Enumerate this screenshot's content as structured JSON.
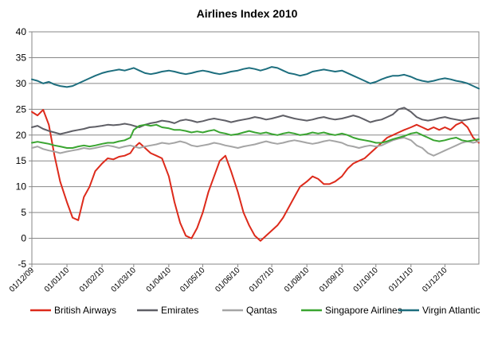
{
  "chart_data": {
    "type": "line",
    "title": "Airlines Index 2010",
    "xlabel": "",
    "ylabel": "",
    "ylim": [
      -5,
      40
    ],
    "yticks": [
      -5,
      0,
      5,
      10,
      15,
      20,
      25,
      30,
      35,
      40
    ],
    "x_tick_labels": [
      "01/12/09",
      "01/01/10",
      "01/02/10",
      "01/03/10",
      "01/04/10",
      "01/05/10",
      "01/06/10",
      "01/07/10",
      "01/08/10",
      "01/09/10",
      "01/10/10",
      "01/11/10",
      "01/12/10"
    ],
    "x_period": [
      "2009-12-01",
      "2010-12-31"
    ],
    "grid": "horizontal",
    "legend_position": "bottom",
    "x": [
      "2009-12-01",
      "2009-12-06",
      "2009-12-11",
      "2009-12-16",
      "2009-12-21",
      "2009-12-26",
      "2010-01-01",
      "2010-01-06",
      "2010-01-11",
      "2010-01-16",
      "2010-01-21",
      "2010-01-26",
      "2010-02-01",
      "2010-02-06",
      "2010-02-11",
      "2010-02-16",
      "2010-02-21",
      "2010-02-26",
      "2010-03-01",
      "2010-03-06",
      "2010-03-11",
      "2010-03-16",
      "2010-03-21",
      "2010-03-26",
      "2010-04-01",
      "2010-04-06",
      "2010-04-11",
      "2010-04-16",
      "2010-04-21",
      "2010-04-26",
      "2010-05-01",
      "2010-05-06",
      "2010-05-11",
      "2010-05-16",
      "2010-05-21",
      "2010-05-26",
      "2010-06-01",
      "2010-06-06",
      "2010-06-11",
      "2010-06-16",
      "2010-06-21",
      "2010-06-26",
      "2010-07-01",
      "2010-07-06",
      "2010-07-11",
      "2010-07-16",
      "2010-07-21",
      "2010-07-26",
      "2010-08-01",
      "2010-08-06",
      "2010-08-11",
      "2010-08-16",
      "2010-08-21",
      "2010-08-26",
      "2010-09-01",
      "2010-09-06",
      "2010-09-11",
      "2010-09-16",
      "2010-09-21",
      "2010-09-26",
      "2010-10-01",
      "2010-10-06",
      "2010-10-11",
      "2010-10-16",
      "2010-10-21",
      "2010-10-26",
      "2010-11-01",
      "2010-11-06",
      "2010-11-11",
      "2010-11-16",
      "2010-11-21",
      "2010-11-26",
      "2010-12-01",
      "2010-12-06",
      "2010-12-11",
      "2010-12-16",
      "2010-12-21",
      "2010-12-26",
      "2010-12-31"
    ],
    "series": [
      {
        "name": "British Airways",
        "color": "#dd2a1b",
        "values": [
          24.5,
          23.8,
          24.9,
          22.0,
          16.0,
          11.0,
          7.0,
          4.0,
          3.5,
          8.0,
          10.0,
          13.0,
          14.5,
          15.5,
          15.3,
          15.8,
          16.0,
          16.5,
          17.5,
          18.5,
          17.5,
          16.5,
          16.0,
          15.5,
          12.0,
          7.0,
          3.0,
          0.5,
          0.0,
          2.0,
          5.0,
          9.0,
          12.0,
          15.0,
          16.0,
          13.0,
          9.0,
          5.0,
          2.5,
          0.5,
          -0.5,
          0.5,
          1.5,
          2.5,
          4.0,
          6.0,
          8.0,
          10.0,
          11.0,
          12.0,
          11.5,
          10.5,
          10.5,
          11.0,
          12.0,
          13.5,
          14.5,
          15.0,
          15.5,
          16.5,
          17.5,
          18.5,
          19.5,
          20.0,
          20.5,
          21.0,
          21.5,
          22.0,
          21.5,
          21.0,
          21.5,
          21.0,
          21.5,
          21.0,
          22.0,
          22.5,
          21.5,
          19.5,
          18.5
        ]
      },
      {
        "name": "Emirates",
        "color": "#5f5f66",
        "values": [
          21.5,
          21.8,
          21.2,
          20.8,
          20.5,
          20.2,
          20.5,
          20.8,
          21.0,
          21.2,
          21.5,
          21.6,
          21.8,
          22.0,
          21.9,
          22.0,
          22.2,
          22.0,
          21.8,
          21.5,
          22.0,
          22.3,
          22.5,
          22.8,
          22.6,
          22.3,
          22.8,
          23.0,
          22.8,
          22.5,
          22.7,
          23.0,
          23.2,
          23.0,
          22.8,
          22.5,
          22.8,
          23.0,
          23.2,
          23.5,
          23.3,
          23.0,
          23.2,
          23.5,
          23.8,
          23.5,
          23.2,
          23.0,
          22.8,
          23.0,
          23.3,
          23.5,
          23.2,
          23.0,
          23.2,
          23.5,
          23.8,
          23.5,
          23.0,
          22.5,
          22.8,
          23.0,
          23.5,
          24.0,
          25.0,
          25.3,
          24.5,
          23.5,
          23.0,
          22.8,
          23.0,
          23.3,
          23.5,
          23.2,
          23.0,
          22.8,
          23.0,
          23.2,
          23.3
        ]
      },
      {
        "name": "Qantas",
        "color": "#a5a5a5",
        "values": [
          17.5,
          17.8,
          17.3,
          17.0,
          16.8,
          16.5,
          16.8,
          17.0,
          17.2,
          17.5,
          17.3,
          17.5,
          17.8,
          18.0,
          17.8,
          17.5,
          17.8,
          18.0,
          17.8,
          17.5,
          17.8,
          18.0,
          18.2,
          18.5,
          18.3,
          18.5,
          18.8,
          18.5,
          18.0,
          17.8,
          18.0,
          18.2,
          18.5,
          18.3,
          18.0,
          17.8,
          17.5,
          17.8,
          18.0,
          18.2,
          18.5,
          18.8,
          18.5,
          18.3,
          18.5,
          18.8,
          19.0,
          18.8,
          18.5,
          18.3,
          18.5,
          18.8,
          19.0,
          18.8,
          18.5,
          18.0,
          17.8,
          17.5,
          17.8,
          18.0,
          17.8,
          18.0,
          18.5,
          19.0,
          19.3,
          19.5,
          19.0,
          18.0,
          17.5,
          16.5,
          16.0,
          16.5,
          17.0,
          17.5,
          18.0,
          18.5,
          18.8,
          18.5,
          18.8
        ]
      },
      {
        "name": "Singapore Airlines",
        "color": "#3aa531",
        "values": [
          18.5,
          18.7,
          18.5,
          18.3,
          18.0,
          17.8,
          17.5,
          17.5,
          17.8,
          18.0,
          17.8,
          18.0,
          18.3,
          18.5,
          18.5,
          18.8,
          19.0,
          19.5,
          21.0,
          21.8,
          22.0,
          21.8,
          22.0,
          21.5,
          21.3,
          21.0,
          21.0,
          20.8,
          20.5,
          20.7,
          20.5,
          20.8,
          21.0,
          20.5,
          20.3,
          20.0,
          20.2,
          20.5,
          20.8,
          20.5,
          20.3,
          20.5,
          20.2,
          20.0,
          20.3,
          20.5,
          20.3,
          20.0,
          20.2,
          20.5,
          20.3,
          20.5,
          20.2,
          20.0,
          20.3,
          20.0,
          19.5,
          19.2,
          19.0,
          18.8,
          18.5,
          18.5,
          18.8,
          19.2,
          19.5,
          19.8,
          20.3,
          20.5,
          20.0,
          19.5,
          19.0,
          18.8,
          19.0,
          19.3,
          19.5,
          19.0,
          18.8,
          19.0,
          19.2
        ]
      },
      {
        "name": "Virgin Atlantic",
        "color": "#1d6e7e",
        "values": [
          30.8,
          30.5,
          30.0,
          30.3,
          29.8,
          29.5,
          29.3,
          29.5,
          30.0,
          30.5,
          31.0,
          31.5,
          32.0,
          32.3,
          32.5,
          32.7,
          32.5,
          32.8,
          33.0,
          32.5,
          32.0,
          31.8,
          32.0,
          32.3,
          32.5,
          32.3,
          32.0,
          31.8,
          32.0,
          32.3,
          32.5,
          32.3,
          32.0,
          31.8,
          32.0,
          32.3,
          32.5,
          32.8,
          33.0,
          32.8,
          32.5,
          32.8,
          33.2,
          33.0,
          32.5,
          32.0,
          31.8,
          31.5,
          31.8,
          32.3,
          32.5,
          32.7,
          32.5,
          32.3,
          32.5,
          32.0,
          31.5,
          31.0,
          30.5,
          30.0,
          30.3,
          30.8,
          31.2,
          31.5,
          31.5,
          31.7,
          31.3,
          30.8,
          30.5,
          30.3,
          30.5,
          30.8,
          31.0,
          30.8,
          30.5,
          30.3,
          30.0,
          29.5,
          29.0
        ]
      }
    ]
  }
}
